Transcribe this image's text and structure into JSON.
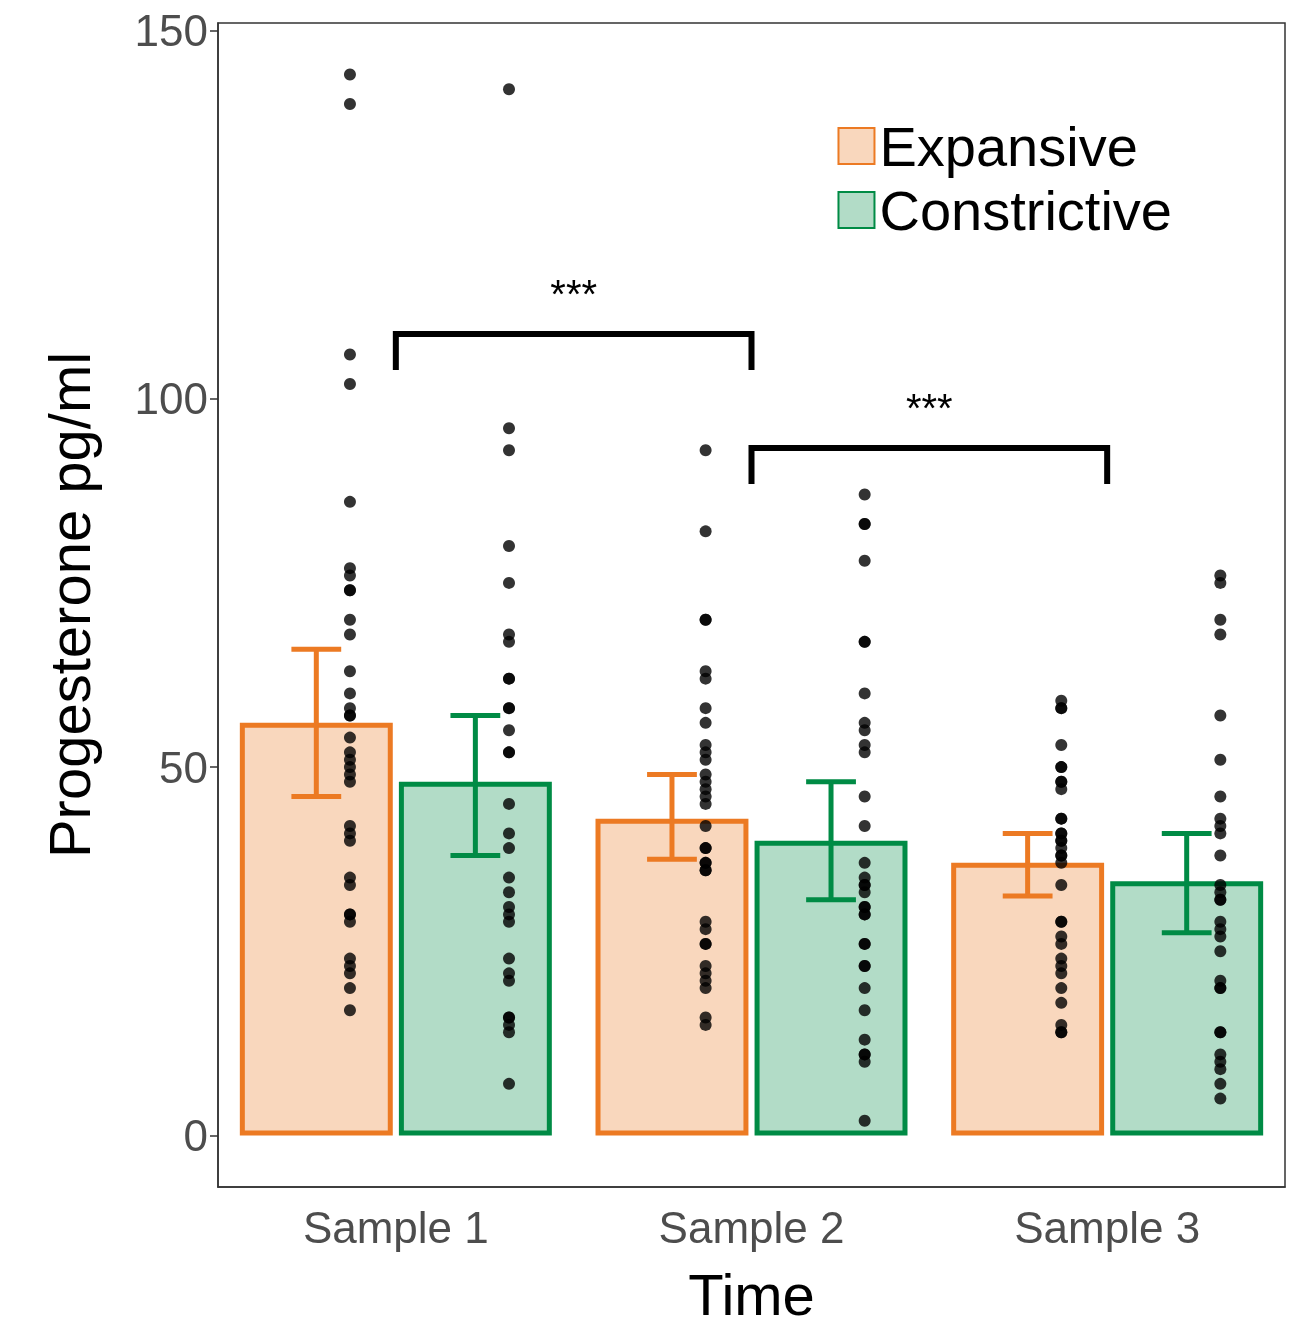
{
  "chart_data": {
    "type": "bar",
    "xlabel": "Time",
    "ylabel": "Progesterone pg/ml",
    "categories": [
      "Sample 1",
      "Sample 2",
      "Sample 3"
    ],
    "ylim": [
      -7,
      151
    ],
    "yticks": [
      0,
      50,
      100,
      150
    ],
    "grid": false,
    "legend": "top right",
    "annotations": [
      "***",
      "***"
    ],
    "series": [
      {
        "name": "Expansive",
        "color": "#ec7a23",
        "values": [
          56,
          43,
          37
        ],
        "errors": [
          [
            46,
            66
          ],
          [
            37.5,
            49
          ],
          [
            32.5,
            41
          ]
        ]
      },
      {
        "name": "Constrictive",
        "color": "#008b45",
        "values": [
          48,
          40,
          34.5
        ],
        "errors": [
          [
            38,
            57
          ],
          [
            32,
            48
          ],
          [
            27.5,
            41
          ]
        ]
      },
      {
        "type": "scatter",
        "color": "#000000",
        "marker": "circle",
        "x": [
          "Sample 1",
          "Sample 1",
          "Sample 1",
          "Sample 1",
          "Sample 1",
          "Sample 1",
          "Sample 1",
          "Sample 1",
          "Sample 1",
          "Sample 1",
          "Sample 1",
          "Sample 1",
          "Sample 1",
          "Sample 1",
          "Sample 1",
          "Sample 1",
          "Sample 1",
          "Sample 1",
          "Sample 1",
          "Sample 1",
          "Sample 1",
          "Sample 1",
          "Sample 1",
          "Sample 1",
          "Sample 1",
          "Sample 1",
          "Sample 1",
          "Sample 1",
          "Sample 1",
          "Sample 1",
          "Sample 1",
          "Sample 1",
          "Sample 1",
          "Sample 1",
          "Sample 1",
          "Sample 2",
          "Sample 2",
          "Sample 2",
          "Sample 2",
          "Sample 2",
          "Sample 2",
          "Sample 2",
          "Sample 2",
          "Sample 2",
          "Sample 2",
          "Sample 2",
          "Sample 2",
          "Sample 2",
          "Sample 2",
          "Sample 2",
          "Sample 2",
          "Sample 2",
          "Sample 2",
          "Sample 2",
          "Sample 2",
          "Sample 2",
          "Sample 2",
          "Sample 2",
          "Sample 2",
          "Sample 2",
          "Sample 2",
          "Sample 2",
          "Sample 2",
          "Sample 2",
          "Sample 2",
          "Sample 2",
          "Sample 2",
          "Sample 2",
          "Sample 3",
          "Sample 3",
          "Sample 3",
          "Sample 3",
          "Sample 3",
          "Sample 3",
          "Sample 3",
          "Sample 3",
          "Sample 3",
          "Sample 3",
          "Sample 3",
          "Sample 3",
          "Sample 3",
          "Sample 3",
          "Sample 3",
          "Sample 3",
          "Sample 3",
          "Sample 3",
          "Sample 3",
          "Sample 3",
          "Sample 3",
          "Sample 3",
          "Sample 3",
          "Sample 3",
          "Sample 3",
          "Sample 3",
          "Sample 3",
          "Sample 3",
          "Sample 3",
          "Sample 3",
          "Sample 3",
          "Sample 3"
        ],
        "values": [
          144,
          140,
          106,
          102,
          86,
          77,
          76,
          74,
          74,
          70,
          68,
          63,
          60,
          58,
          57,
          57,
          54,
          52,
          51,
          50,
          49,
          48,
          42,
          41,
          40,
          35,
          34,
          30,
          30,
          29,
          24,
          23,
          22,
          20,
          17,
          93,
          82,
          70,
          70,
          63,
          62,
          58,
          56,
          53,
          52,
          51,
          49,
          48,
          47,
          46,
          45,
          42,
          39,
          39,
          37,
          37,
          36,
          36,
          29,
          28,
          26,
          26,
          23,
          22,
          21,
          20,
          16,
          15,
          58,
          59,
          58,
          53,
          50,
          50,
          48,
          48,
          47,
          43,
          43,
          41,
          41,
          40,
          40,
          39,
          38,
          38,
          37,
          34,
          29,
          29,
          27,
          26,
          24,
          23,
          22,
          20,
          18,
          15,
          14,
          14
        ]
      },
      {
        "type": "scatter",
        "color": "#000000",
        "marker": "circle",
        "x": [
          "Sample 1",
          "Sample 1",
          "Sample 1",
          "Sample 1",
          "Sample 1",
          "Sample 1",
          "Sample 1",
          "Sample 1",
          "Sample 1",
          "Sample 1",
          "Sample 1",
          "Sample 1",
          "Sample 1",
          "Sample 1",
          "Sample 1",
          "Sample 1",
          "Sample 1",
          "Sample 1",
          "Sample 1",
          "Sample 1",
          "Sample 1",
          "Sample 1",
          "Sample 1",
          "Sample 1",
          "Sample 1",
          "Sample 1",
          "Sample 1",
          "Sample 1",
          "Sample 1",
          "Sample 1",
          "Sample 2",
          "Sample 2",
          "Sample 2",
          "Sample 2",
          "Sample 2",
          "Sample 2",
          "Sample 2",
          "Sample 2",
          "Sample 2",
          "Sample 2",
          "Sample 2",
          "Sample 2",
          "Sample 2",
          "Sample 2",
          "Sample 2",
          "Sample 2",
          "Sample 2",
          "Sample 2",
          "Sample 2",
          "Sample 2",
          "Sample 2",
          "Sample 2",
          "Sample 2",
          "Sample 2",
          "Sample 2",
          "Sample 2",
          "Sample 2",
          "Sample 2",
          "Sample 2",
          "Sample 2",
          "Sample 2",
          "Sample 2",
          "Sample 2",
          "Sample 3",
          "Sample 3",
          "Sample 3",
          "Sample 3",
          "Sample 3",
          "Sample 3",
          "Sample 3",
          "Sample 3",
          "Sample 3",
          "Sample 3",
          "Sample 3",
          "Sample 3",
          "Sample 3",
          "Sample 3",
          "Sample 3",
          "Sample 3",
          "Sample 3",
          "Sample 3",
          "Sample 3",
          "Sample 3",
          "Sample 3",
          "Sample 3",
          "Sample 3",
          "Sample 3",
          "Sample 3",
          "Sample 3",
          "Sample 3",
          "Sample 3",
          "Sample 3"
        ],
        "values": [
          142,
          96,
          93,
          80,
          75,
          68,
          67,
          62,
          62,
          58,
          58,
          55,
          52,
          52,
          45,
          41,
          39,
          35,
          33,
          31,
          30,
          29,
          24,
          22,
          21,
          16,
          16,
          15,
          14,
          7,
          87,
          83,
          83,
          78,
          67,
          67,
          60,
          56,
          55,
          53,
          52,
          46,
          42,
          37,
          35,
          34,
          33,
          34,
          31,
          31,
          30,
          30,
          26,
          26,
          23,
          23,
          20,
          17,
          13,
          11,
          11,
          10,
          2,
          76,
          75,
          70,
          68,
          57,
          51,
          46,
          43,
          42,
          41,
          38,
          34,
          33,
          32,
          32,
          29,
          28,
          27,
          25,
          21,
          20,
          20,
          14,
          14,
          11,
          10,
          9,
          7,
          5
        ]
      }
    ]
  }
}
